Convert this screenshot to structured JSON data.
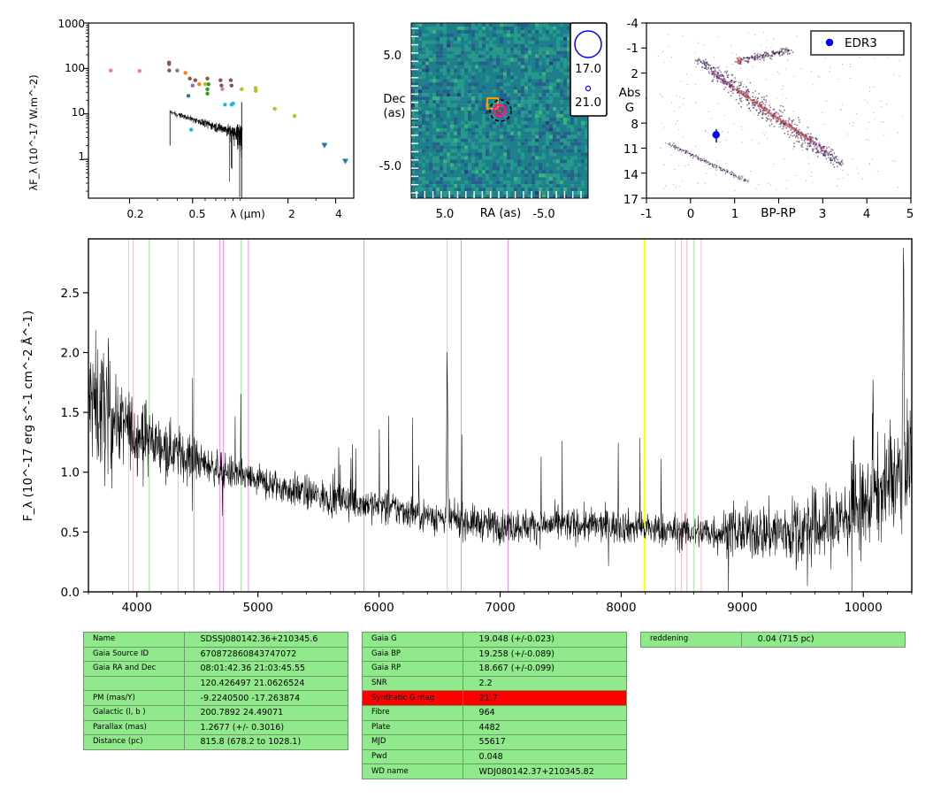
{
  "colors": {
    "spectrum": "#000000",
    "table_bg": "#90e98a",
    "table_highlight": "#ff0000",
    "edr3_marker": "#0000ff"
  },
  "sed": {
    "ylabel": "λF_λ (10^-17 W.m^-2)",
    "xlabel": "λ (μm)",
    "xticks": [
      "0.2",
      "0.5",
      "2",
      "4"
    ],
    "yticks": [
      "1000",
      "100",
      "10",
      "1"
    ],
    "scale": "log-log",
    "photometry": [
      {
        "x": 0.152,
        "y": 90,
        "color": "#e377c2"
      },
      {
        "x": 0.231,
        "y": 88,
        "color": "#e377c2"
      },
      {
        "x": 0.355,
        "y": 135,
        "color": "#8c564b"
      },
      {
        "x": 0.355,
        "y": 125,
        "color": "#8c564b"
      },
      {
        "x": 0.356,
        "y": 90,
        "color": "#8c564b"
      },
      {
        "x": 0.4,
        "y": 90,
        "color": "#7f7f7f"
      },
      {
        "x": 0.45,
        "y": 80,
        "color": "#ff7f0e"
      },
      {
        "x": 0.47,
        "y": 25,
        "color": "#1f77b4"
      },
      {
        "x": 0.48,
        "y": 60,
        "color": "#8c564b"
      },
      {
        "x": 0.49,
        "y": 4.5,
        "color": "#17becf"
      },
      {
        "x": 0.5,
        "y": 42,
        "color": "#9467bd"
      },
      {
        "x": 0.52,
        "y": 55,
        "color": "#8c564b"
      },
      {
        "x": 0.55,
        "y": 45,
        "color": "#ff7f0e"
      },
      {
        "x": 0.6,
        "y": 45,
        "color": "#bcbd22"
      },
      {
        "x": 0.62,
        "y": 60,
        "color": "#8c564b"
      },
      {
        "x": 0.62,
        "y": 28,
        "color": "#2ca02c"
      },
      {
        "x": 0.62,
        "y": 35,
        "color": "#2ca02c"
      },
      {
        "x": 0.63,
        "y": 45,
        "color": "#2ca02c"
      },
      {
        "x": 0.75,
        "y": 55,
        "color": "#8c564b"
      },
      {
        "x": 0.76,
        "y": 42,
        "color": "#8c564b"
      },
      {
        "x": 0.77,
        "y": 35,
        "color": "#e377c2"
      },
      {
        "x": 0.8,
        "y": 16,
        "color": "#17becf"
      },
      {
        "x": 0.87,
        "y": 55,
        "color": "#8c564b"
      },
      {
        "x": 0.88,
        "y": 42,
        "color": "#8c564b"
      },
      {
        "x": 0.88,
        "y": 16,
        "color": "#17becf"
      },
      {
        "x": 0.9,
        "y": 17,
        "color": "#17becf"
      },
      {
        "x": 1.02,
        "y": 35,
        "color": "#bcbd22"
      },
      {
        "x": 1.25,
        "y": 37,
        "color": "#bcbd22"
      },
      {
        "x": 1.25,
        "y": 32,
        "color": "#bcbd22"
      },
      {
        "x": 1.65,
        "y": 13,
        "color": "#bcbd22"
      },
      {
        "x": 2.2,
        "y": 9,
        "color": "#bcbd22"
      }
    ],
    "upper_limits": [
      {
        "x": 3.4,
        "y": 2,
        "color": "#1f77b4"
      },
      {
        "x": 4.6,
        "y": 0.9,
        "color": "#1f77b4"
      }
    ]
  },
  "image": {
    "xlabel": "RA (as)",
    "ylabel_line1": "Dec",
    "ylabel_line2": "(as)",
    "xticks": [
      "5.0",
      "-5.0"
    ],
    "yticks": [
      "5.0",
      "-5.0"
    ],
    "legend": [
      "17.0",
      "21.0"
    ]
  },
  "hr": {
    "xlabel": "BP-RP",
    "ylabel_line1": "Abs",
    "ylabel_line2": "G",
    "xticks": [
      "-1",
      "0",
      "1",
      "2",
      "3",
      "4",
      "5"
    ],
    "yticks": [
      "-4",
      "-1",
      "2",
      "5",
      "8",
      "11",
      "14",
      "17"
    ],
    "legend_label": "EDR3",
    "star": {
      "bp_rp": 0.58,
      "abs_g": 9.4
    }
  },
  "chart_data": {
    "type": "line",
    "ylabel": "F_λ (10^-17 erg s^-1 cm^-2 Å^-1)",
    "xlim": [
      3600,
      10400
    ],
    "ylim": [
      0,
      2.95
    ],
    "xticks": [
      "4000",
      "5000",
      "6000",
      "7000",
      "8000",
      "9000",
      "10000"
    ],
    "yticks": [
      "0.0",
      "0.5",
      "1.0",
      "1.5",
      "2.0",
      "2.5"
    ],
    "trend": [
      [
        3600,
        1.6
      ],
      [
        3800,
        1.45
      ],
      [
        4000,
        1.32
      ],
      [
        4300,
        1.18
      ],
      [
        4600,
        1.05
      ],
      [
        5000,
        0.92
      ],
      [
        5500,
        0.8
      ],
      [
        6000,
        0.72
      ],
      [
        6500,
        0.62
      ],
      [
        7000,
        0.55
      ],
      [
        7500,
        0.56
      ],
      [
        8000,
        0.55
      ],
      [
        8500,
        0.5
      ],
      [
        9000,
        0.5
      ],
      [
        9400,
        0.5
      ],
      [
        9700,
        0.55
      ],
      [
        10000,
        0.7
      ],
      [
        10300,
        1.0
      ],
      [
        10400,
        1.2
      ]
    ],
    "features": [
      {
        "x": 6563,
        "y": 1.9
      },
      {
        "x": 10080,
        "y": 1.55
      },
      {
        "x": 10330,
        "y": 2.6
      }
    ],
    "line_markers": [
      {
        "x": 3933,
        "color": "#ffb6c1"
      },
      {
        "x": 3968,
        "color": "#ffb6c1"
      },
      {
        "x": 4102,
        "color": "#90ee90"
      },
      {
        "x": 4340,
        "color": "#90ee90"
      },
      {
        "x": 4471,
        "color": "#ee82ee"
      },
      {
        "x": 4686,
        "color": "#ee82ee"
      },
      {
        "x": 4713,
        "color": "#ee82ee"
      },
      {
        "x": 4861,
        "color": "#90ee90"
      },
      {
        "x": 4922,
        "color": "#ee82ee"
      },
      {
        "x": 5876,
        "color": "#ee82ee"
      },
      {
        "x": 6563,
        "color": "#90ee90"
      },
      {
        "x": 6678,
        "color": "#ee82ee"
      },
      {
        "x": 7065,
        "color": "#ee82ee"
      },
      {
        "x": 8190,
        "color": "#ffff00"
      },
      {
        "x": 8195,
        "color": "#ffff00"
      },
      {
        "x": 8446,
        "color": "#90ee90"
      },
      {
        "x": 8498,
        "color": "#ffb6c1"
      },
      {
        "x": 8542,
        "color": "#ffb6c1"
      },
      {
        "x": 8598,
        "color": "#90ee90"
      },
      {
        "x": 8662,
        "color": "#ffb6c1"
      }
    ]
  },
  "table1": [
    {
      "key": "Name",
      "value": "SDSSJ080142.36+210345.6"
    },
    {
      "key": "Gaia Source ID",
      "value": "670872860843747072"
    },
    {
      "key": "Gaia RA and Dec",
      "value": "08:01:42.36    21:03:45.55"
    },
    {
      "key": "",
      "value": "120.426497    21.0626524"
    },
    {
      "key": "PM (mas/Y)",
      "value": "-9.2240500    -17.263874"
    },
    {
      "key": "Galactic (l, b )",
      "value": "200.7892    24.49071"
    },
    {
      "key": "Parallax (mas)",
      "value": "1.2677 (+/- 0.3016)"
    },
    {
      "key": "Distance (pc)",
      "value": "815.8 (678.2 to 1028.1)"
    }
  ],
  "table2": [
    {
      "key": "Gaia G",
      "value": "19.048 (+/-0.023)"
    },
    {
      "key": "Gaia BP",
      "value": "19.258 (+/-0.089)"
    },
    {
      "key": "Gaia RP",
      "value": "18.667 (+/-0.099)"
    },
    {
      "key": "SNR",
      "value": "2.2"
    },
    {
      "key": "Synthetic G mag",
      "value": "21.7",
      "highlight": true
    },
    {
      "key": "Fibre",
      "value": "964"
    },
    {
      "key": "Plate",
      "value": "4482"
    },
    {
      "key": "MJD",
      "value": "55617"
    },
    {
      "key": "Pwd",
      "value": "0.048"
    },
    {
      "key": "WD name",
      "value": "WDJ080142.37+210345.82"
    }
  ],
  "table3": [
    {
      "key": "reddening",
      "value": "0.04 (715 pc)"
    }
  ]
}
